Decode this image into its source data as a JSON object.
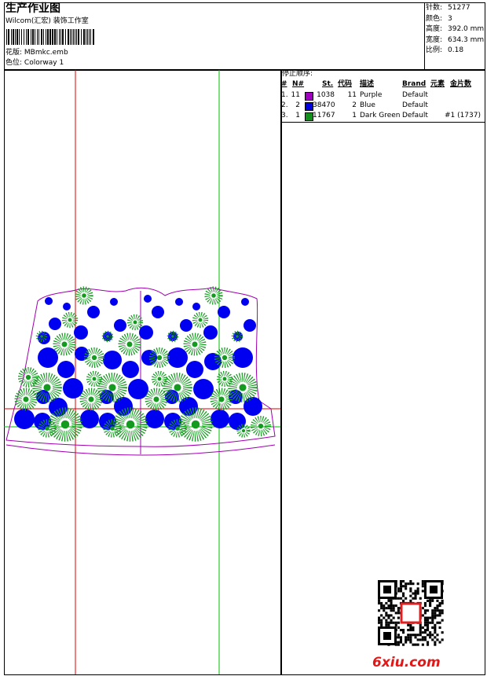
{
  "header": {
    "title": "生产作业图",
    "studio": "Wilcom(汇宏) 装饰工作室",
    "design": {
      "label": "花版:",
      "value": "MBmkc.emb"
    },
    "colorway": {
      "label": "色位:",
      "value": "Colorway 1"
    }
  },
  "info": [
    {
      "label": "针数:",
      "value": "51277"
    },
    {
      "label": "颜色:",
      "value": "3"
    },
    {
      "label": "高度:",
      "value": "392.0 mm"
    },
    {
      "label": "宽度:",
      "value": "634.3 mm"
    },
    {
      "label": "比例:",
      "value": "0.18"
    }
  ],
  "sequence": {
    "title": "停止顺序:",
    "columns": [
      "#",
      "N#",
      "St.",
      "代码",
      "描述",
      "Brand",
      "元素",
      "金片数"
    ],
    "rows": [
      {
        "num": "1.",
        "n": "11",
        "swatch": "#a000c0",
        "stitches": "1038",
        "code": "11",
        "desc": "Purple",
        "brand": "Default",
        "sequins": ""
      },
      {
        "num": "2.",
        "n": "2",
        "swatch": "#0000e0",
        "stitches": "38470",
        "code": "2",
        "desc": "Blue",
        "brand": "Default",
        "sequins": ""
      },
      {
        "num": "3.",
        "n": "1",
        "swatch": "#10901a",
        "stitches": "11767",
        "code": "1",
        "desc": "Dark Green",
        "brand": "Default",
        "sequins": "#1 (1737)"
      }
    ]
  },
  "watermark": "6xiu.com"
}
